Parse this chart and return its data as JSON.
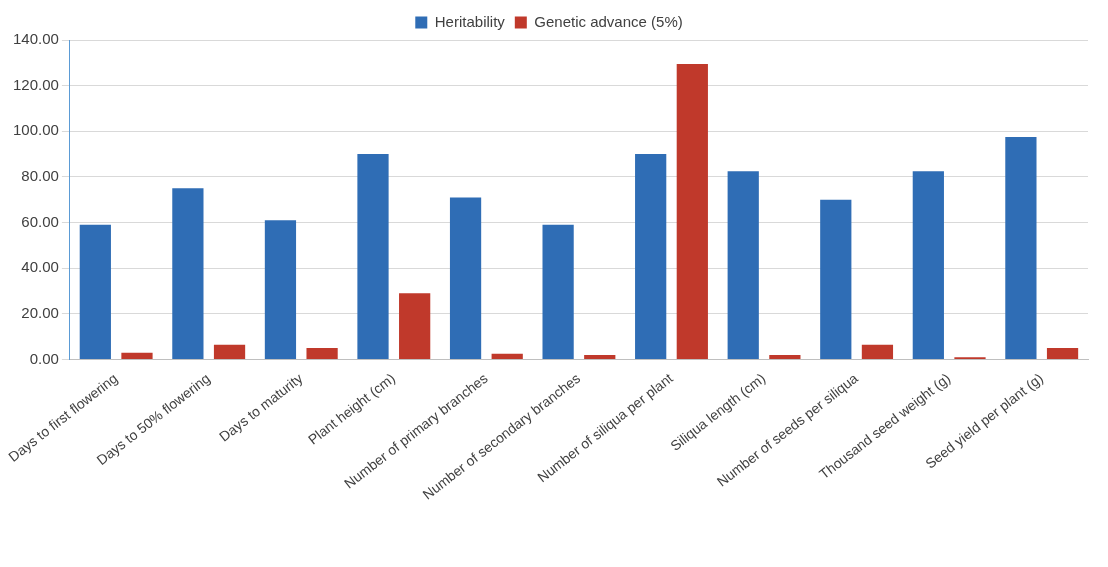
{
  "chart_data": {
    "type": "bar",
    "categories": [
      "Days to first flowering",
      "Days to 50% flowering",
      "Days to maturity",
      "Plant height (cm)",
      "Number of primary branches",
      "Number of secondary branches",
      "Number of siliqua per plant",
      "Siliqua length (cm)",
      "Number of seeds per siliqua",
      "Thousand seed weight (g)",
      "Seed yield per plant (g)"
    ],
    "series": [
      {
        "name": "Heritability",
        "color": "#2f6db5",
        "values": [
          59,
          75,
          61,
          90,
          71,
          59,
          90,
          82.5,
          70,
          82.5,
          97.5
        ]
      },
      {
        "name": "Genetic advance (5%)",
        "color": "#c0392b",
        "values": [
          3,
          6.5,
          5,
          29,
          2.5,
          2,
          129.5,
          2,
          6.5,
          1,
          5
        ]
      }
    ],
    "ylim": [
      0,
      140
    ],
    "yticks": [
      {
        "value": 0,
        "label": "0.00"
      },
      {
        "value": 20,
        "label": "20.00"
      },
      {
        "value": 40,
        "label": "40.00"
      },
      {
        "value": 60,
        "label": "60.00"
      },
      {
        "value": 80,
        "label": "80.00"
      },
      {
        "value": 100,
        "label": "100.00"
      },
      {
        "value": 120,
        "label": "120.00"
      },
      {
        "value": 140,
        "label": "140.00"
      }
    ],
    "grid": "y",
    "legend": "top"
  }
}
